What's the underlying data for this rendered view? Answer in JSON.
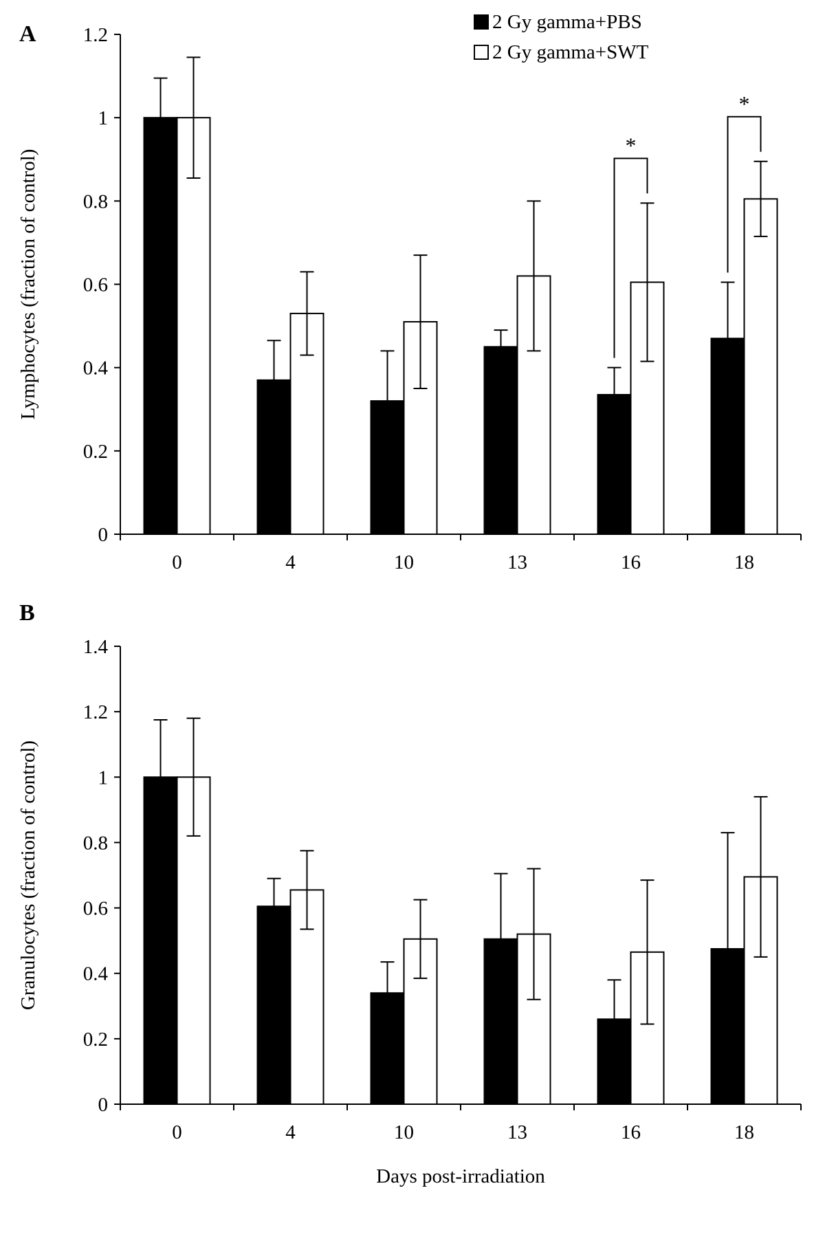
{
  "figure": {
    "legend": {
      "entries": [
        {
          "label": "2 Gy gamma+PBS",
          "fill": "#000000"
        },
        {
          "label": "2 Gy gamma+SWT",
          "fill": "#ffffff"
        }
      ]
    },
    "xlabel": "Days post-irradiation",
    "colors": {
      "pbs": "#000000",
      "swt": "#ffffff",
      "stroke": "#000000"
    }
  },
  "chart_data": [
    {
      "type": "bar",
      "panel": "A",
      "categories": [
        "0",
        "4",
        "10",
        "13",
        "16",
        "18"
      ],
      "ylabel": "Lymphocytes  (fraction of control)",
      "xlabel": "",
      "ylim": [
        0,
        1.2
      ],
      "yticks": [
        "0",
        "0.2",
        "0.4",
        "0.6",
        "0.8",
        "1",
        "1.2"
      ],
      "series": [
        {
          "name": "2 Gy gamma+PBS",
          "values": [
            1.0,
            0.37,
            0.32,
            0.45,
            0.335,
            0.47
          ],
          "errors": [
            0.095,
            0.095,
            0.12,
            0.04,
            0.065,
            0.135
          ]
        },
        {
          "name": "2 Gy gamma+SWT",
          "values": [
            1.0,
            0.53,
            0.51,
            0.62,
            0.605,
            0.805
          ],
          "errors": [
            0.145,
            0.1,
            0.16,
            0.18,
            0.19,
            0.09
          ]
        }
      ],
      "annotations": [
        {
          "category": "16",
          "label": "*"
        },
        {
          "category": "18",
          "label": "*"
        }
      ]
    },
    {
      "type": "bar",
      "panel": "B",
      "categories": [
        "0",
        "4",
        "10",
        "13",
        "16",
        "18"
      ],
      "ylabel": "Granulocytes  (fraction of control)",
      "xlabel": "Days post-irradiation",
      "ylim": [
        0,
        1.4
      ],
      "yticks": [
        "0",
        "0.2",
        "0.4",
        "0.6",
        "0.8",
        "1",
        "1.2",
        "1.4"
      ],
      "series": [
        {
          "name": "2 Gy gamma+PBS",
          "values": [
            1.0,
            0.605,
            0.34,
            0.505,
            0.26,
            0.475
          ],
          "errors": [
            0.175,
            0.085,
            0.095,
            0.2,
            0.12,
            0.355
          ]
        },
        {
          "name": "2 Gy gamma+SWT",
          "values": [
            1.0,
            0.655,
            0.505,
            0.52,
            0.465,
            0.695
          ],
          "errors": [
            0.18,
            0.12,
            0.12,
            0.2,
            0.22,
            0.245
          ]
        }
      ],
      "annotations": []
    }
  ]
}
